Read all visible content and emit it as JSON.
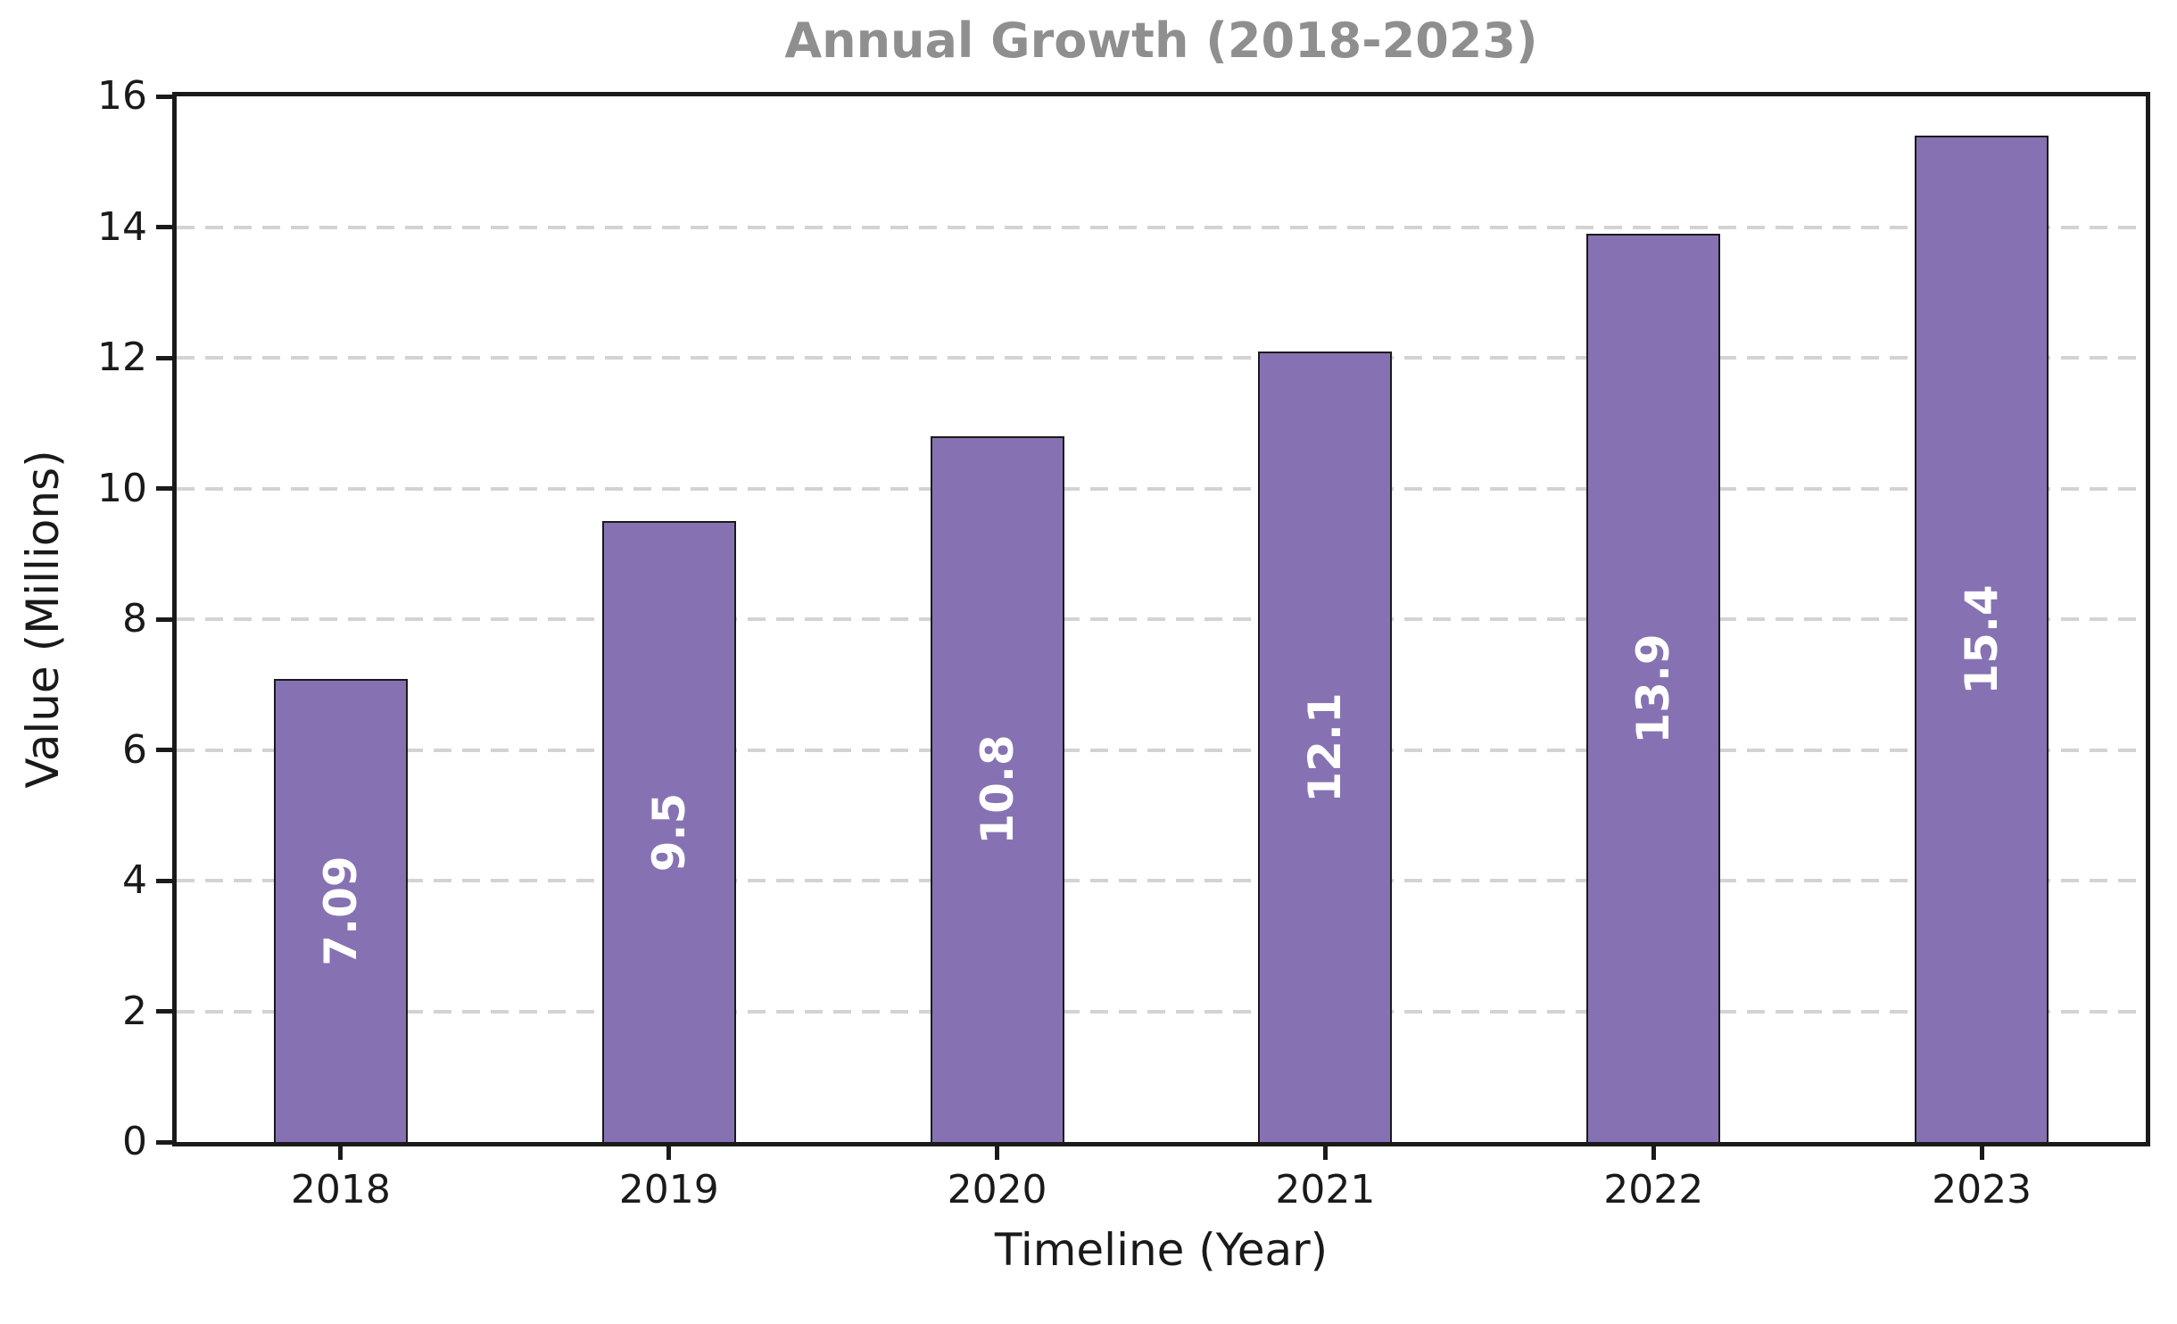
{
  "chart_data": {
    "type": "bar",
    "title": "Annual Growth (2018-2023)",
    "xlabel": "Timeline (Year)",
    "ylabel": "Value (Millions)",
    "categories": [
      "2018",
      "2019",
      "2020",
      "2021",
      "2022",
      "2023"
    ],
    "values": [
      7.09,
      9.5,
      10.8,
      12.1,
      13.9,
      15.4
    ],
    "bar_value_labels": [
      "7.09",
      "9.5",
      "10.8",
      "12.1",
      "13.9",
      "15.4"
    ],
    "ylim": [
      0,
      16
    ],
    "ytick_values": [
      0,
      2,
      4,
      6,
      8,
      10,
      12,
      14,
      16
    ],
    "ytick_labels": [
      "0",
      "2",
      "4",
      "6",
      "8",
      "10",
      "12",
      "14",
      "16"
    ],
    "grid": {
      "axis": "y",
      "style": "dashed",
      "on": true
    },
    "legend": "none",
    "bar_label_rotation_deg": 90,
    "colors": {
      "bar_fill": "#8672b2",
      "bar_edge": "#1a1a1a",
      "bar_label_text": "#ffffff",
      "title_text": "#8f8f8f",
      "axis_text": "#1a1a1a",
      "spine": "#1a1a1a",
      "gridline": "#d3d3d3",
      "background": "#ffffff"
    }
  }
}
